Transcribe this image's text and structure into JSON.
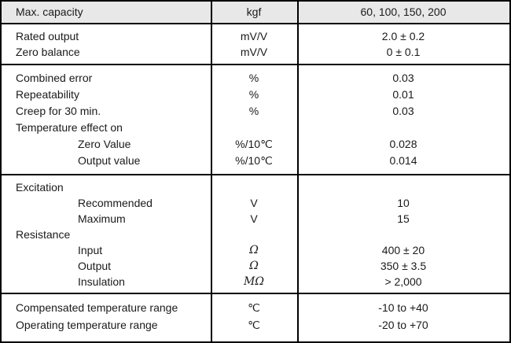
{
  "table": {
    "colors": {
      "header_bg": "#e8e8e8",
      "border": "#000000",
      "text": "#1a1a1a"
    },
    "header": {
      "label": "Max. capacity",
      "unit": "kgf",
      "value": "60, 100, 150, 200"
    },
    "sections": [
      {
        "rows": [
          {
            "label": "Rated output",
            "unit": "mV/V",
            "value": "2.0 ± 0.2"
          },
          {
            "label": "Zero balance",
            "unit": "mV/V",
            "value": "0 ± 0.1"
          }
        ]
      },
      {
        "rows": [
          {
            "label": "Combined error",
            "unit": "%",
            "value": "0.03"
          },
          {
            "label": "Repeatability",
            "unit": "%",
            "value": "0.01"
          },
          {
            "label": "Creep for 30 min.",
            "unit": "%",
            "value": "0.03"
          },
          {
            "label": "Temperature effect on",
            "unit": "",
            "value": ""
          },
          {
            "label": "Zero Value",
            "unit": "%/10℃",
            "value": "0.028"
          },
          {
            "label": "Output value",
            "unit": "%/10℃",
            "value": "0.014"
          }
        ]
      },
      {
        "rows": [
          {
            "label": "Excitation",
            "unit": "",
            "value": ""
          },
          {
            "label": "Recommended",
            "unit": "V",
            "value": "10"
          },
          {
            "label": "Maximum",
            "unit": "V",
            "value": "15"
          },
          {
            "label": "Resistance",
            "unit": "",
            "value": ""
          },
          {
            "label": "Input",
            "unit": "Ω",
            "value": "400 ± 20"
          },
          {
            "label": "Output",
            "unit": "Ω",
            "value": "350 ± 3.5"
          },
          {
            "label": "Insulation",
            "unit": "MΩ",
            "value": "> 2,000"
          }
        ]
      },
      {
        "rows": [
          {
            "label": "Compensated temperature range",
            "unit": "℃",
            "value": "-10 to +40"
          },
          {
            "label": "Operating temperature range",
            "unit": "℃",
            "value": "-20 to +70"
          }
        ]
      }
    ]
  }
}
